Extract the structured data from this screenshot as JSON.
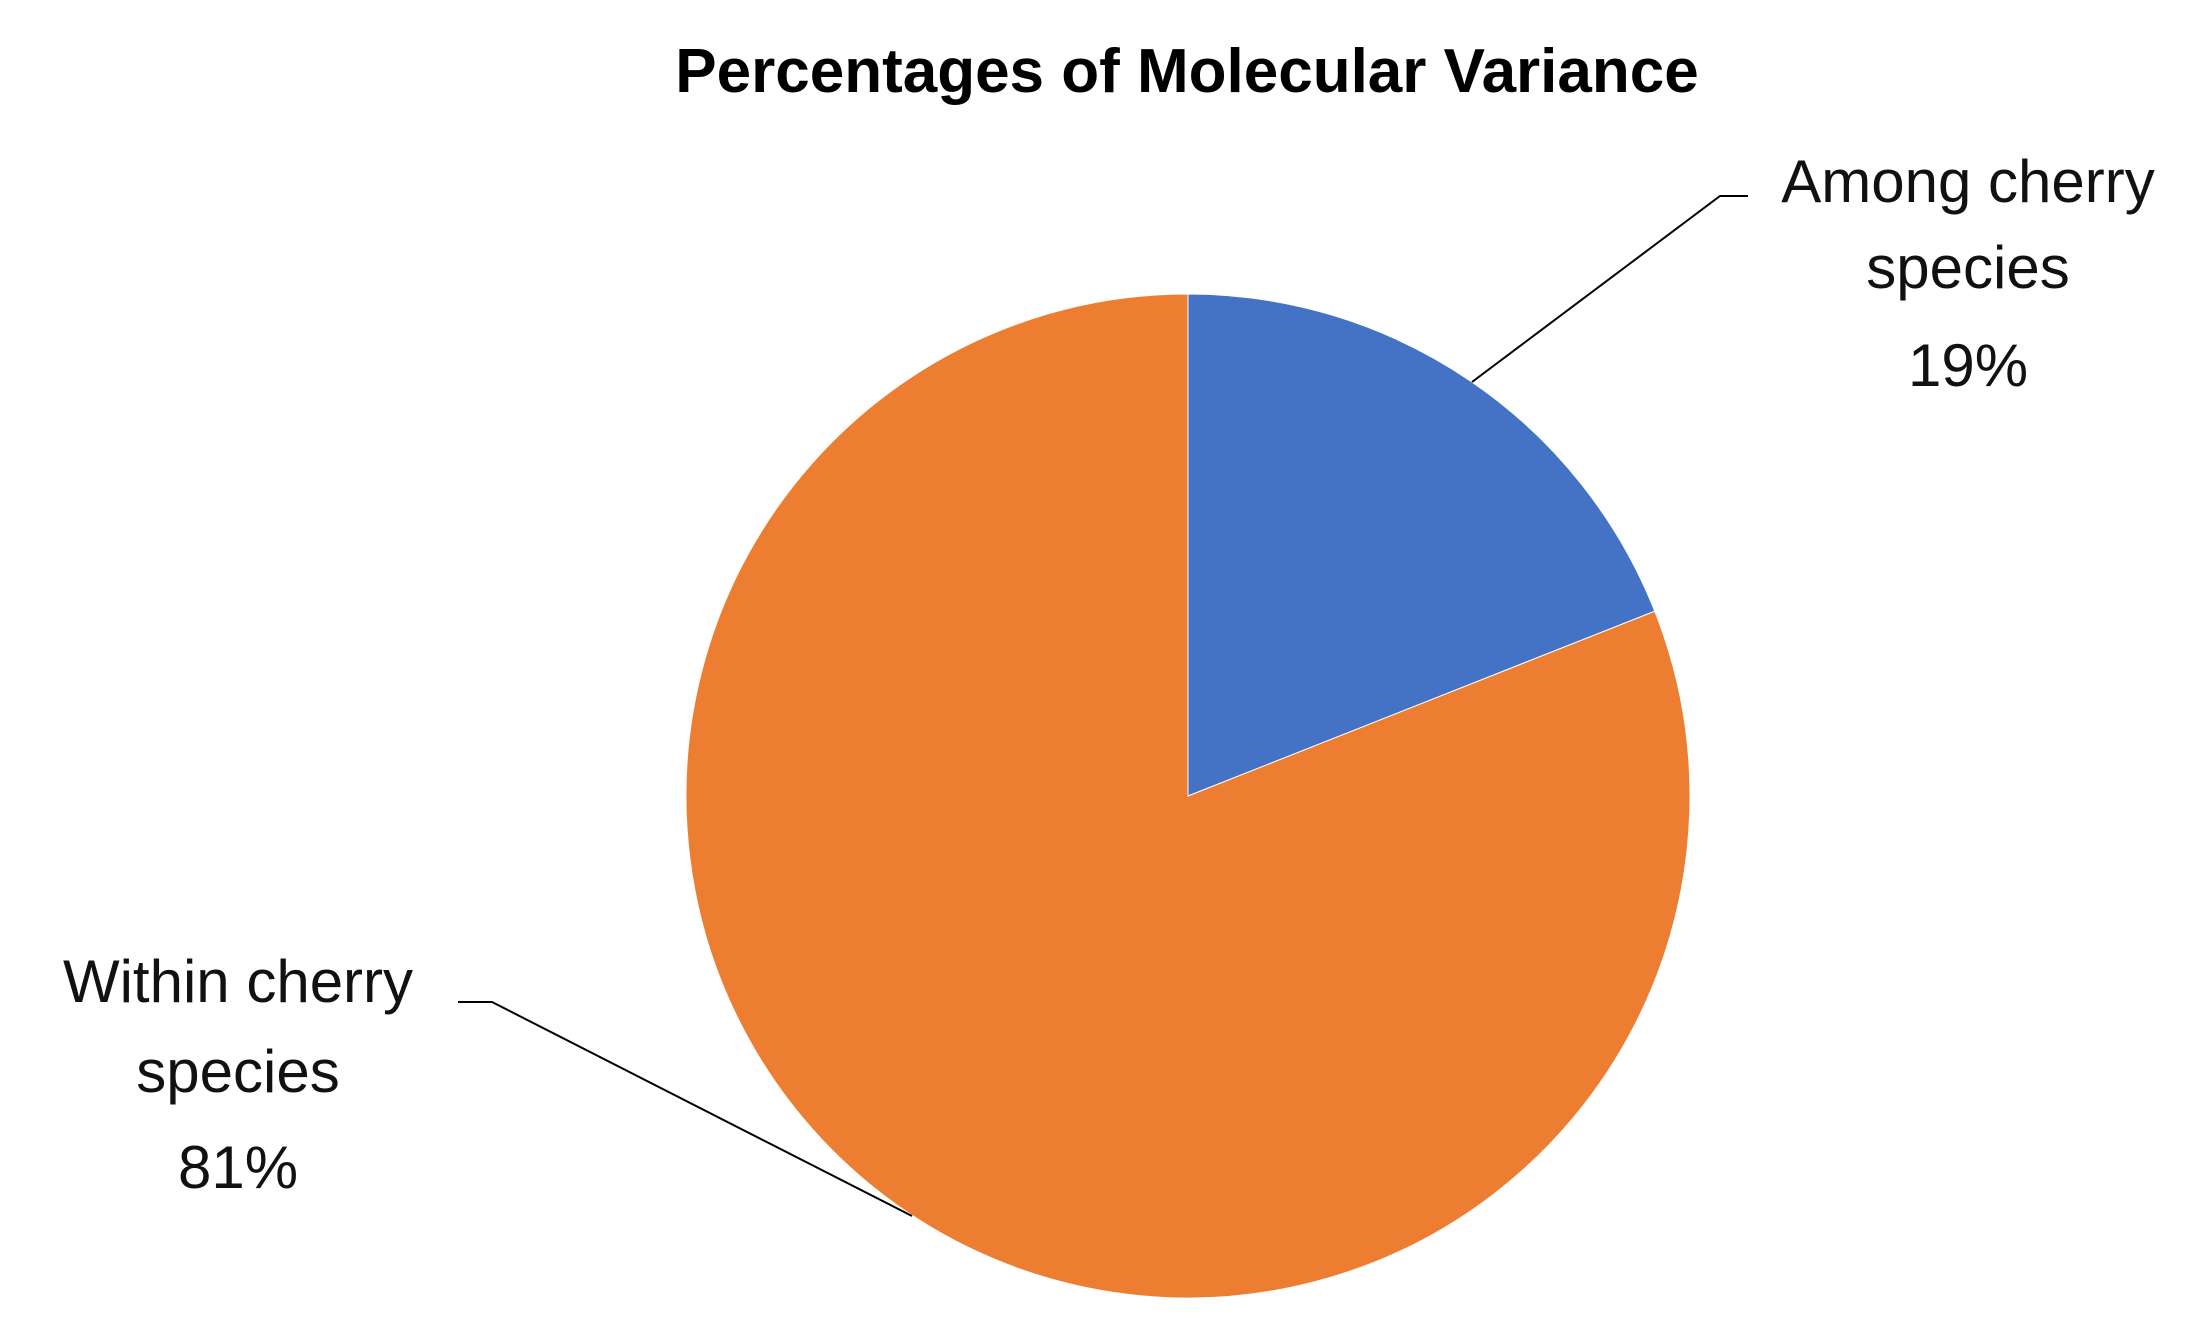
{
  "chart_data": {
    "type": "pie",
    "title": "Percentages of Molecular Variance",
    "slices": [
      {
        "label_line1": "Among cherry",
        "label_line2": "species",
        "value": 19,
        "value_label": "19%",
        "color": "#4472C4"
      },
      {
        "label_line1": "Within cherry",
        "label_line2": "species",
        "value": 81,
        "value_label": "81%",
        "color": "#ED7D31"
      }
    ]
  }
}
